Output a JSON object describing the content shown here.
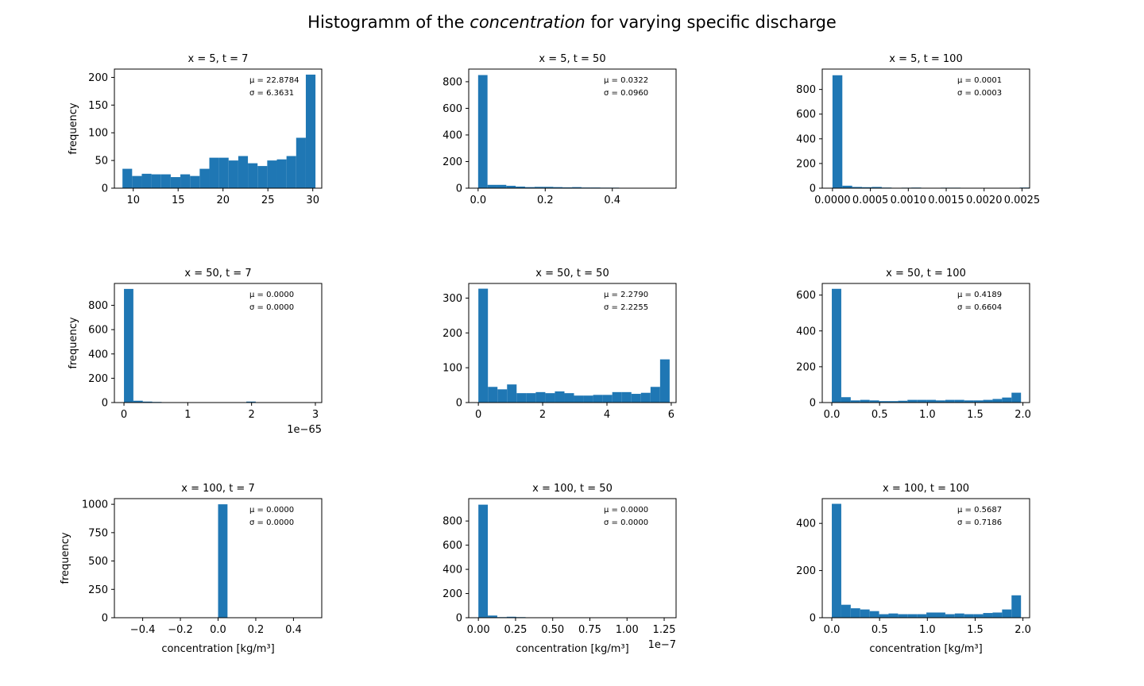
{
  "figure": {
    "title_pre": "Histogramm of the ",
    "title_em": "concentration",
    "title_post": "  for varying specific discharge",
    "bar_color": "#1f77b4"
  },
  "chart_data": [
    {
      "type": "bar",
      "title": "x = 5, t = 7",
      "ylabel": "frequency",
      "xlabel": "",
      "xlim": [
        7.9,
        31.0
      ],
      "ylim": [
        0,
        215
      ],
      "xticks": [
        10,
        15,
        20,
        25,
        30
      ],
      "xtick_labels": [
        "10",
        "15",
        "20",
        "25",
        "30"
      ],
      "yticks": [
        0,
        50,
        100,
        150,
        200
      ],
      "ytick_labels": [
        "0",
        "50",
        "100",
        "150",
        "200"
      ],
      "x_offset": "",
      "stats": {
        "mu": "μ = 22.8784",
        "sigma": "σ = 6.3631"
      },
      "bin_start": 8.8,
      "bin_end": 30.3,
      "values": [
        35,
        22,
        26,
        25,
        25,
        20,
        25,
        22,
        35,
        55,
        55,
        50,
        58,
        45,
        40,
        50,
        52,
        58,
        91,
        205
      ]
    },
    {
      "type": "bar",
      "title": "x = 5, t = 50",
      "ylabel": "",
      "xlabel": "",
      "xlim": [
        -0.028,
        0.59
      ],
      "ylim": [
        0,
        895
      ],
      "xticks": [
        0,
        0.2,
        0.4
      ],
      "xtick_labels": [
        "0.0",
        "0.2",
        "0.4"
      ],
      "yticks": [
        0,
        200,
        400,
        600,
        800
      ],
      "ytick_labels": [
        "0",
        "200",
        "400",
        "600",
        "800"
      ],
      "x_offset": "",
      "stats": {
        "mu": "μ = 0.0322",
        "sigma": "σ = 0.0960"
      },
      "bin_start": 0.0,
      "bin_end": 0.56,
      "values": [
        850,
        25,
        25,
        18,
        12,
        8,
        10,
        10,
        8,
        6,
        8,
        5,
        5,
        4,
        4,
        3,
        3,
        2,
        2,
        2
      ]
    },
    {
      "type": "bar",
      "title": "x = 5, t = 100",
      "ylabel": "",
      "xlabel": "",
      "xlim": [
        -0.000135,
        0.0026
      ],
      "ylim": [
        0,
        965
      ],
      "xticks": [
        0,
        0.0005,
        0.001,
        0.0015,
        0.002,
        0.0025
      ],
      "xtick_labels": [
        "0.0000",
        "0.0005",
        "0.0010",
        "0.0015",
        "0.0020",
        "0.0025"
      ],
      "yticks": [
        0,
        200,
        400,
        600,
        800
      ],
      "ytick_labels": [
        "0",
        "200",
        "400",
        "600",
        "800"
      ],
      "x_offset": "",
      "stats": {
        "mu": "μ = 0.0001",
        "sigma": "σ = 0.0003"
      },
      "bin_start": 0.0,
      "bin_end": 0.0026,
      "values": [
        915,
        20,
        10,
        8,
        10,
        5,
        3,
        4,
        5,
        3,
        3,
        4,
        4,
        3,
        3,
        3,
        3,
        2,
        2,
        5
      ]
    },
    {
      "type": "bar",
      "title": "x = 50, t = 7",
      "ylabel": "frequency",
      "xlabel": "",
      "xlim": [
        -0.15,
        3.1
      ],
      "ylim": [
        0,
        980
      ],
      "xticks": [
        0,
        1,
        2,
        3
      ],
      "xtick_labels": [
        "0",
        "1",
        "2",
        "3"
      ],
      "yticks": [
        0,
        200,
        400,
        600,
        800
      ],
      "ytick_labels": [
        "0",
        "200",
        "400",
        "600",
        "800"
      ],
      "x_offset": "1e−65",
      "stats": {
        "mu": "μ = 0.0000",
        "sigma": "σ = 0.0000"
      },
      "bin_start": 0.0,
      "bin_end": 2.95,
      "values": [
        935,
        15,
        8,
        5,
        2,
        1,
        1,
        1,
        1,
        1,
        1,
        1,
        1,
        8,
        1,
        1,
        1,
        1,
        1,
        1
      ]
    },
    {
      "type": "bar",
      "title": "x = 50, t = 50",
      "ylabel": "",
      "xlabel": "",
      "xlim": [
        -0.3,
        6.15
      ],
      "ylim": [
        0,
        342
      ],
      "xticks": [
        0,
        2,
        4,
        6
      ],
      "xtick_labels": [
        "0",
        "2",
        "4",
        "6"
      ],
      "yticks": [
        0,
        100,
        200,
        300
      ],
      "ytick_labels": [
        "0",
        "100",
        "200",
        "300"
      ],
      "x_offset": "",
      "stats": {
        "mu": "μ = 2.2790",
        "sigma": "σ = 2.2255"
      },
      "bin_start": 0.0,
      "bin_end": 5.95,
      "values": [
        327,
        45,
        38,
        52,
        27,
        27,
        30,
        27,
        32,
        27,
        20,
        20,
        22,
        22,
        30,
        30,
        25,
        28,
        45,
        124
      ]
    },
    {
      "type": "bar",
      "title": "x = 50, t = 100",
      "ylabel": "",
      "xlabel": "",
      "xlim": [
        -0.1,
        2.07
      ],
      "ylim": [
        0,
        665
      ],
      "xticks": [
        0,
        0.5,
        1,
        1.5,
        2
      ],
      "xtick_labels": [
        "0.0",
        "0.5",
        "1.0",
        "1.5",
        "2.0"
      ],
      "yticks": [
        0,
        200,
        400,
        600
      ],
      "ytick_labels": [
        "0",
        "200",
        "400",
        "600"
      ],
      "x_offset": "",
      "stats": {
        "mu": "μ = 0.4189",
        "sigma": "σ = 0.6604"
      },
      "bin_start": 0.0,
      "bin_end": 1.98,
      "values": [
        635,
        30,
        12,
        15,
        12,
        8,
        8,
        10,
        15,
        15,
        15,
        12,
        15,
        15,
        12,
        12,
        15,
        20,
        28,
        55
      ]
    },
    {
      "type": "bar",
      "title": "x = 100, t = 7",
      "ylabel": "frequency",
      "xlabel": "concentration [kg/m³]",
      "xlim": [
        -0.55,
        0.55
      ],
      "ylim": [
        0,
        1050
      ],
      "xticks": [
        -0.4,
        -0.2,
        0,
        0.2,
        0.4
      ],
      "xtick_labels": [
        "−0.4",
        "−0.2",
        "0.0",
        "0.2",
        "0.4"
      ],
      "yticks": [
        0,
        250,
        500,
        750,
        1000
      ],
      "ytick_labels": [
        "0",
        "250",
        "500",
        "750",
        "1000"
      ],
      "x_offset": "",
      "stats": {
        "mu": "μ = 0.0000",
        "sigma": "σ = 0.0000"
      },
      "bin_start": -0.5,
      "bin_end": 0.5,
      "values": [
        0,
        0,
        0,
        0,
        0,
        0,
        0,
        0,
        0,
        0,
        1000,
        0,
        0,
        0,
        0,
        0,
        0,
        0,
        0,
        0
      ]
    },
    {
      "type": "bar",
      "title": "x = 100, t = 50",
      "ylabel": "",
      "xlabel": "concentration [kg/m³]",
      "xlim": [
        -0.065,
        1.33
      ],
      "ylim": [
        0,
        985
      ],
      "xticks": [
        0,
        0.25,
        0.5,
        0.75,
        1.0,
        1.25
      ],
      "xtick_labels": [
        "0.00",
        "0.25",
        "0.50",
        "0.75",
        "1.00",
        "1.25"
      ],
      "yticks": [
        0,
        200,
        400,
        600,
        800
      ],
      "ytick_labels": [
        "0",
        "200",
        "400",
        "600",
        "800"
      ],
      "x_offset": "1e−7",
      "stats": {
        "mu": "μ = 0.0000",
        "sigma": "σ = 0.0000"
      },
      "bin_start": 0.0,
      "bin_end": 1.27,
      "values": [
        935,
        18,
        5,
        8,
        5,
        3,
        3,
        3,
        3,
        3,
        2,
        2,
        2,
        2,
        2,
        2,
        2,
        2,
        2,
        2
      ]
    },
    {
      "type": "bar",
      "title": "x = 100, t = 100",
      "ylabel": "",
      "xlabel": "concentration [kg/m³]",
      "xlim": [
        -0.1,
        2.07
      ],
      "ylim": [
        0,
        505
      ],
      "xticks": [
        0,
        0.5,
        1,
        1.5,
        2
      ],
      "xtick_labels": [
        "0.0",
        "0.5",
        "1.0",
        "1.5",
        "2.0"
      ],
      "yticks": [
        0,
        200,
        400
      ],
      "ytick_labels": [
        "0",
        "200",
        "400"
      ],
      "x_offset": "",
      "stats": {
        "mu": "μ = 0.5687",
        "sigma": "σ = 0.7186"
      },
      "bin_start": 0.0,
      "bin_end": 1.98,
      "values": [
        483,
        55,
        40,
        35,
        28,
        15,
        18,
        15,
        15,
        15,
        22,
        22,
        15,
        18,
        15,
        15,
        20,
        22,
        35,
        95
      ]
    }
  ]
}
